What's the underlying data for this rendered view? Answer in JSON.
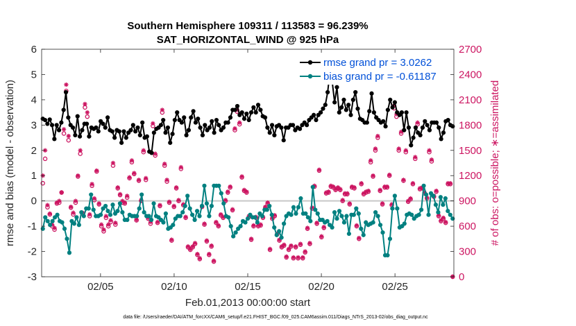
{
  "chart_data": {
    "type": "line",
    "title": "Southern Hemisphere 109311 / 113583 = 96.239%",
    "subtitle": "SAT_HORIZONTAL_WIND @ 925 hPa",
    "xlabel": "Feb.01,2013 00:00:00 start",
    "ylabel": "rmse and bias (model - observation)",
    "ylabel_right": "# of obs: o=possible; ∗=assimilated",
    "footnote": "data file: /Users/raeder/DAI/ATM_forcXX/CAM6_setup/f.e21.FHIST_BGC.f09_025.CAM6assim.011/Diags_NTrS_2013-02/obs_diag_output.nc",
    "x_unit": "days since Feb.01,2013 00:00",
    "xlim": [
      0,
      28
    ],
    "ylim": [
      -3,
      6
    ],
    "ylim_right": [
      0,
      2700
    ],
    "xticks": [
      {
        "value": 4,
        "label": "02/05"
      },
      {
        "value": 9,
        "label": "02/10"
      },
      {
        "value": 14,
        "label": "02/15"
      },
      {
        "value": 19,
        "label": "02/20"
      },
      {
        "value": 24,
        "label": "02/25"
      }
    ],
    "yticks": [
      -3,
      -2,
      -1,
      0,
      1,
      2,
      3,
      4,
      5,
      6
    ],
    "yticks_right": [
      0,
      300,
      600,
      900,
      1200,
      1500,
      1800,
      2100,
      2400,
      2700
    ],
    "series": [
      {
        "name": "rmse grand pr = 3.0262",
        "color": "#000000",
        "marker": "dot",
        "values": [
          3.25,
          3.2,
          3.05,
          3.22,
          3.0,
          2.45,
          3.0,
          2.8,
          3.1,
          3.6,
          4.3,
          3.3,
          3.0,
          2.9,
          2.6,
          3.35,
          2.55,
          2.8,
          3.05,
          3.05,
          2.55,
          2.9,
          2.85,
          2.9,
          2.75,
          3.15,
          3.05,
          2.9,
          3.3,
          2.8,
          2.75,
          2.5,
          2.8,
          2.75,
          2.3,
          2.75,
          2.5,
          2.7,
          2.8,
          3.0,
          2.75,
          2.9,
          2.6,
          3.1,
          2.5,
          2.55,
          1.95,
          1.9,
          2.7,
          2.85,
          2.9,
          3.0,
          3.2,
          2.7,
          2.9,
          2.3,
          2.65,
          3.2,
          3.5,
          3.2,
          3.1,
          3.3,
          2.6,
          2.8,
          3.3,
          3.55,
          3.1,
          3.25,
          2.9,
          2.6,
          3.0,
          2.8,
          2.9,
          3.15,
          2.7,
          3.2,
          3.0,
          2.8,
          2.9,
          3.1,
          3.1,
          3.3,
          3.6,
          3.6,
          3.75,
          3.4,
          3.5,
          3.25,
          3.45,
          3.2,
          3.5,
          3.7,
          3.5,
          3.8,
          3.6,
          3.35,
          3.3,
          2.9,
          2.7,
          3.0,
          2.6,
          2.95,
          3.0,
          2.9,
          2.4,
          2.9,
          2.9,
          3.0,
          3.0,
          2.8,
          2.9,
          2.85,
          3.0,
          3.1,
          3.0,
          3.2,
          3.3,
          3.4,
          3.2,
          3.4,
          3.5,
          3.65,
          3.8,
          4.3,
          5.1,
          4.7,
          3.9,
          4.5,
          3.5,
          3.7,
          4.0,
          3.6,
          3.8,
          3.4,
          4.0,
          4.3,
          3.65,
          3.25,
          3.2,
          3.1,
          3.1,
          3.55,
          4.25,
          3.5,
          3.3,
          3.2,
          3.1,
          3.15,
          2.95,
          3.6,
          4.0,
          3.7,
          3.9,
          3.5,
          3.4,
          3.5,
          2.8,
          3.5,
          2.9,
          2.2,
          2.5,
          2.9,
          2.7,
          2.6,
          2.9,
          3.15,
          3.0,
          2.8,
          3.1,
          3.1,
          3.1,
          2.9,
          2.45,
          2.7,
          3.15,
          3.2,
          3.0,
          2.95
        ]
      },
      {
        "name": "bias grand pr = -0.61187",
        "color": "#008080",
        "marker": "dot",
        "values": [
          -1.1,
          -0.65,
          -0.8,
          -0.95,
          -0.8,
          -0.65,
          -0.55,
          -0.8,
          -0.85,
          -1.1,
          -1.5,
          -2.05,
          -0.8,
          -0.9,
          -0.65,
          -0.95,
          -0.45,
          -0.6,
          -0.3,
          -0.3,
          0.25,
          -0.35,
          -0.6,
          -0.6,
          -0.55,
          -0.3,
          -0.2,
          -0.4,
          -0.55,
          -0.15,
          -0.5,
          -0.4,
          -0.1,
          -0.45,
          -0.75,
          -0.75,
          -0.55,
          -0.6,
          -0.6,
          -0.6,
          -0.3,
          0.25,
          -0.45,
          -0.6,
          -0.6,
          -0.75,
          -0.1,
          -0.6,
          -0.65,
          -0.75,
          -0.85,
          -0.5,
          -1.1,
          -1.05,
          -0.95,
          -0.7,
          -0.6,
          -0.6,
          -0.45,
          -0.2,
          0.2,
          -0.3,
          -0.55,
          -0.75,
          -0.4,
          -0.6,
          -0.2,
          0.6,
          -0.1,
          -0.6,
          -0.2,
          0.6,
          0.6,
          0.6,
          0.3,
          -0.1,
          -0.6,
          -0.65,
          -1.0,
          -1.4,
          -1.25,
          -1.1,
          -1.0,
          -0.8,
          -0.85,
          -0.7,
          -0.55,
          -0.65,
          -0.65,
          -0.85,
          -0.5,
          -0.6,
          -0.35,
          -0.35,
          -0.2,
          -0.55,
          -1.05,
          -1.35,
          -1.2,
          -1.45,
          -0.9,
          -0.6,
          -0.5,
          -0.55,
          -0.25,
          -0.5,
          -0.25,
          0.1,
          -0.5,
          -0.5,
          -0.65,
          -0.8,
          0.55,
          -0.35,
          -0.5,
          -0.75,
          -0.75,
          -0.85,
          -0.8,
          -0.95,
          -1.05,
          -0.45,
          -0.7,
          -0.4,
          -0.6,
          -0.85,
          -0.6,
          -1.3,
          -0.55,
          -0.55,
          -0.3,
          -0.5,
          -1.1,
          -1.35,
          -0.85,
          -0.95,
          -0.9,
          -0.85,
          -0.45,
          -0.6,
          -0.95,
          -1.25,
          -2.15,
          -2.15,
          -1.5,
          -0.3,
          0.2,
          -0.3,
          -1.05,
          -1.0,
          -0.9,
          -0.55,
          -0.5,
          -0.55,
          -0.7,
          -0.6,
          -0.55,
          -0.35,
          0.6,
          0.25,
          -0.55,
          0.3,
          0.2,
          -0.15,
          -0.45,
          0.15,
          -0.15,
          0.1,
          -0.4,
          -0.55,
          -0.7
        ]
      }
    ],
    "obs_series": [
      {
        "name": "possible",
        "marker": "circle",
        "color": "#cc1561",
        "values": [
          1110,
          1400,
          825,
          740,
          600,
          560,
          870,
          880,
          1000,
          1700,
          2205,
          1620,
          820,
          740,
          880,
          1190,
          1460,
          750,
          2010,
          1900,
          720,
          1080,
          910,
          1250,
          860,
          600,
          540,
          700,
          600,
          650,
          1320,
          620,
          1050,
          970,
          880,
          870,
          940,
          1170,
          1360,
          1220,
          670,
          1140,
          900,
          1480,
          1150,
          690,
          630,
          1790,
          1440,
          640,
          840,
          1950,
          1320,
          1130,
          880,
          430,
          830,
          1050,
          900,
          1280,
          850,
          700,
          350,
          320,
          350,
          390,
          260,
          210,
          830,
          620,
          420,
          260,
          360,
          180,
          640,
          600,
          730,
          700,
          900,
          1000,
          1060,
          790,
          1740,
          1960,
          1810,
          1180,
          1020,
          1000,
          710,
          440,
          600,
          700,
          600,
          610,
          700,
          820,
          870,
          320,
          690,
          720,
          500,
          430,
          350,
          370,
          230,
          320,
          360,
          220,
          350,
          220,
          380,
          220,
          290,
          570,
          390,
          810,
          1070,
          630,
          1260,
          470,
          580,
          990,
          1000,
          1070,
          1060,
          1030,
          1050,
          1030,
          900,
          980,
          980,
          860,
          1060,
          1050,
          600,
          450,
          1100,
          980,
          1000,
          1010,
          1360,
          1190,
          1500,
          1650,
          1020,
          860,
          1060,
          1060,
          1200,
          850,
          2000,
          1900,
          1500,
          1700,
          1140,
          1480,
          890,
          920,
          1100,
          1400,
          1810,
          1040,
          1050,
          990,
          930,
          1480,
          1370,
          950,
          1010,
          720,
          660,
          690,
          640,
          1100,
          1100,
          0
        ]
      },
      {
        "name": "assimilated",
        "marker": "asterisk",
        "color": "#cc1561",
        "values": [
          1200,
          1500,
          850,
          750,
          620,
          580,
          880,
          900,
          1000,
          1750,
          2280,
          1670,
          830,
          760,
          900,
          1200,
          1500,
          760,
          2050,
          1950,
          740,
          1100,
          930,
          1260,
          870,
          620,
          560,
          720,
          620,
          670,
          1350,
          640,
          1060,
          980,
          900,
          880,
          960,
          1180,
          1380,
          1230,
          680,
          1150,
          910,
          1500,
          1170,
          700,
          650,
          1820,
          1460,
          650,
          850,
          1980,
          1340,
          1150,
          890,
          440,
          840,
          1060,
          910,
          1300,
          860,
          710,
          360,
          330,
          360,
          400,
          270,
          220,
          840,
          630,
          430,
          270,
          370,
          190,
          650,
          610,
          740,
          710,
          910,
          1010,
          1070,
          800,
          1760,
          1980,
          1830,
          1190,
          1030,
          1010,
          720,
          450,
          610,
          710,
          610,
          620,
          710,
          830,
          880,
          330,
          700,
          730,
          510,
          440,
          360,
          380,
          240,
          330,
          370,
          230,
          360,
          230,
          390,
          230,
          300,
          580,
          400,
          820,
          1080,
          640,
          1270,
          480,
          590,
          1000,
          1010,
          1080,
          1070,
          1040,
          1060,
          1040,
          910,
          990,
          990,
          870,
          1070,
          1060,
          610,
          460,
          1110,
          990,
          1010,
          1020,
          1380,
          1200,
          1520,
          1670,
          1030,
          870,
          1070,
          1070,
          1210,
          860,
          2030,
          1930,
          1520,
          1720,
          1150,
          1500,
          900,
          930,
          1110,
          1420,
          1830,
          1050,
          1060,
          1000,
          940,
          1500,
          1390,
          960,
          1020,
          730,
          670,
          700,
          650,
          1110,
          1110,
          0
        ]
      }
    ],
    "zero_line_color": "#c8c8c8"
  }
}
